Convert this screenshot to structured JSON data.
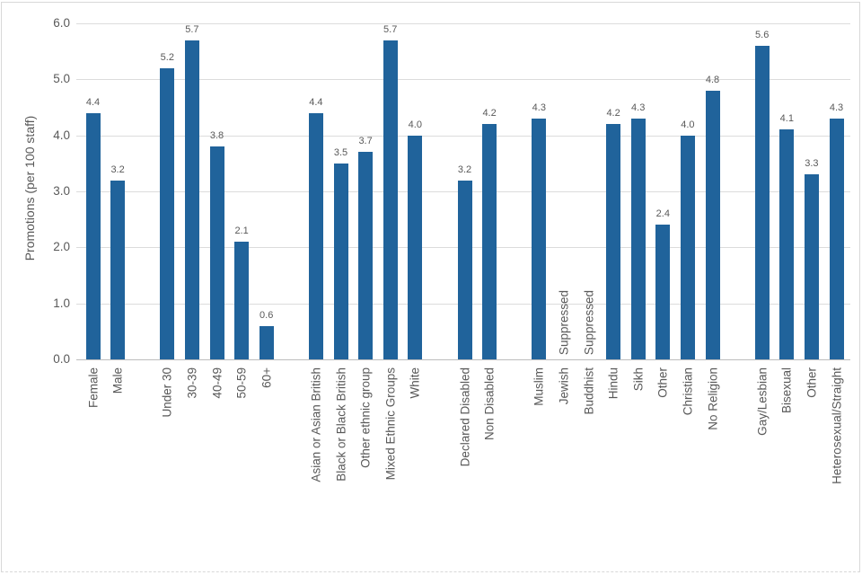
{
  "chart_data": {
    "type": "bar",
    "title": "",
    "xlabel": "",
    "ylabel": "Promotions (per 100 staff)",
    "ylim": [
      0,
      6
    ],
    "yticks": [
      {
        "value": 0,
        "label": "0.0"
      },
      {
        "value": 1,
        "label": "1.0"
      },
      {
        "value": 2,
        "label": "2.0"
      },
      {
        "value": 3,
        "label": "3.0"
      },
      {
        "value": 4,
        "label": "4.0"
      },
      {
        "value": 5,
        "label": "5.0"
      },
      {
        "value": 6,
        "label": "6.0"
      }
    ],
    "grid": true,
    "legend": "none",
    "bar_color": "#20639b",
    "suppressed_label": "Suppressed",
    "groups": [
      {
        "name": "gender",
        "bars": [
          {
            "label": "Female",
            "value": 4.4
          },
          {
            "label": "Male",
            "value": 3.2
          }
        ]
      },
      {
        "name": "age",
        "bars": [
          {
            "label": "Under 30",
            "value": 5.2
          },
          {
            "label": "30-39",
            "value": 5.7
          },
          {
            "label": "40-49",
            "value": 3.8
          },
          {
            "label": "50-59",
            "value": 2.1
          },
          {
            "label": "60+",
            "value": 0.6
          }
        ]
      },
      {
        "name": "ethnicity",
        "bars": [
          {
            "label": "Asian or Asian British",
            "value": 4.4
          },
          {
            "label": "Black or Black British",
            "value": 3.5
          },
          {
            "label": "Other ethnic group",
            "value": 3.7
          },
          {
            "label": "Mixed Ethnic Groups",
            "value": 5.7
          },
          {
            "label": "White",
            "value": 4.0
          }
        ]
      },
      {
        "name": "disability",
        "bars": [
          {
            "label": "Declared Disabled",
            "value": 3.2
          },
          {
            "label": "Non Disabled",
            "value": 4.2
          }
        ]
      },
      {
        "name": "religion",
        "bars": [
          {
            "label": "Muslim",
            "value": 4.3
          },
          {
            "label": "Jewish",
            "value": null,
            "suppressed": true
          },
          {
            "label": "Buddhist",
            "value": null,
            "suppressed": true
          },
          {
            "label": "Hindu",
            "value": 4.2
          },
          {
            "label": "Sikh",
            "value": 4.3
          },
          {
            "label": "Other",
            "value": 2.4
          },
          {
            "label": "Christian",
            "value": 4.0
          },
          {
            "label": "No Religion",
            "value": 4.8
          }
        ]
      },
      {
        "name": "sexual-orientation",
        "bars": [
          {
            "label": "Gay/Lesbian",
            "value": 5.6
          },
          {
            "label": "Bisexual",
            "value": 4.1
          },
          {
            "label": "Other",
            "value": 3.3
          },
          {
            "label": "Heterosexual/Straight",
            "value": 4.3
          }
        ]
      }
    ]
  }
}
